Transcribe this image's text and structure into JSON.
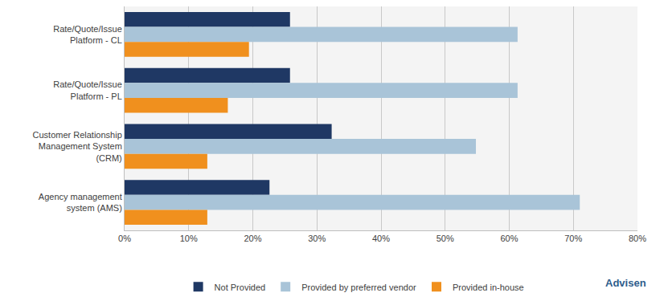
{
  "chart_data": {
    "type": "bar",
    "orientation": "horizontal",
    "categories": [
      "Rate/Quote/Issue Platform - CL",
      "Rate/Quote/Issue Platform - PL",
      "Customer Relationship Management System (CRM)",
      "Agency management system (AMS)"
    ],
    "series": [
      {
        "name": "Not Provided",
        "color": "#1f3864",
        "values": [
          25.8,
          25.8,
          32.3,
          22.6
        ]
      },
      {
        "name": "Provided by preferred vendor",
        "color": "#a9c4d8",
        "values": [
          61.3,
          61.3,
          54.8,
          71.0
        ]
      },
      {
        "name": "Provided in-house",
        "color": "#f0901e",
        "values": [
          19.4,
          16.1,
          12.9,
          12.9
        ]
      }
    ],
    "xlim": [
      0,
      80
    ],
    "xticks": [
      {
        "value": 0,
        "label": "0%"
      },
      {
        "value": 10,
        "label": "10%"
      },
      {
        "value": 20,
        "label": "20%"
      },
      {
        "value": 30,
        "label": "30%"
      },
      {
        "value": 40,
        "label": "40%"
      },
      {
        "value": 50,
        "label": "50%"
      },
      {
        "value": 60,
        "label": "60%"
      },
      {
        "value": 70,
        "label": "70%"
      },
      {
        "value": 80,
        "label": "80%"
      }
    ],
    "grid": true,
    "legend": "bottom",
    "annotations": [
      {
        "text": "Advisen"
      }
    ]
  }
}
